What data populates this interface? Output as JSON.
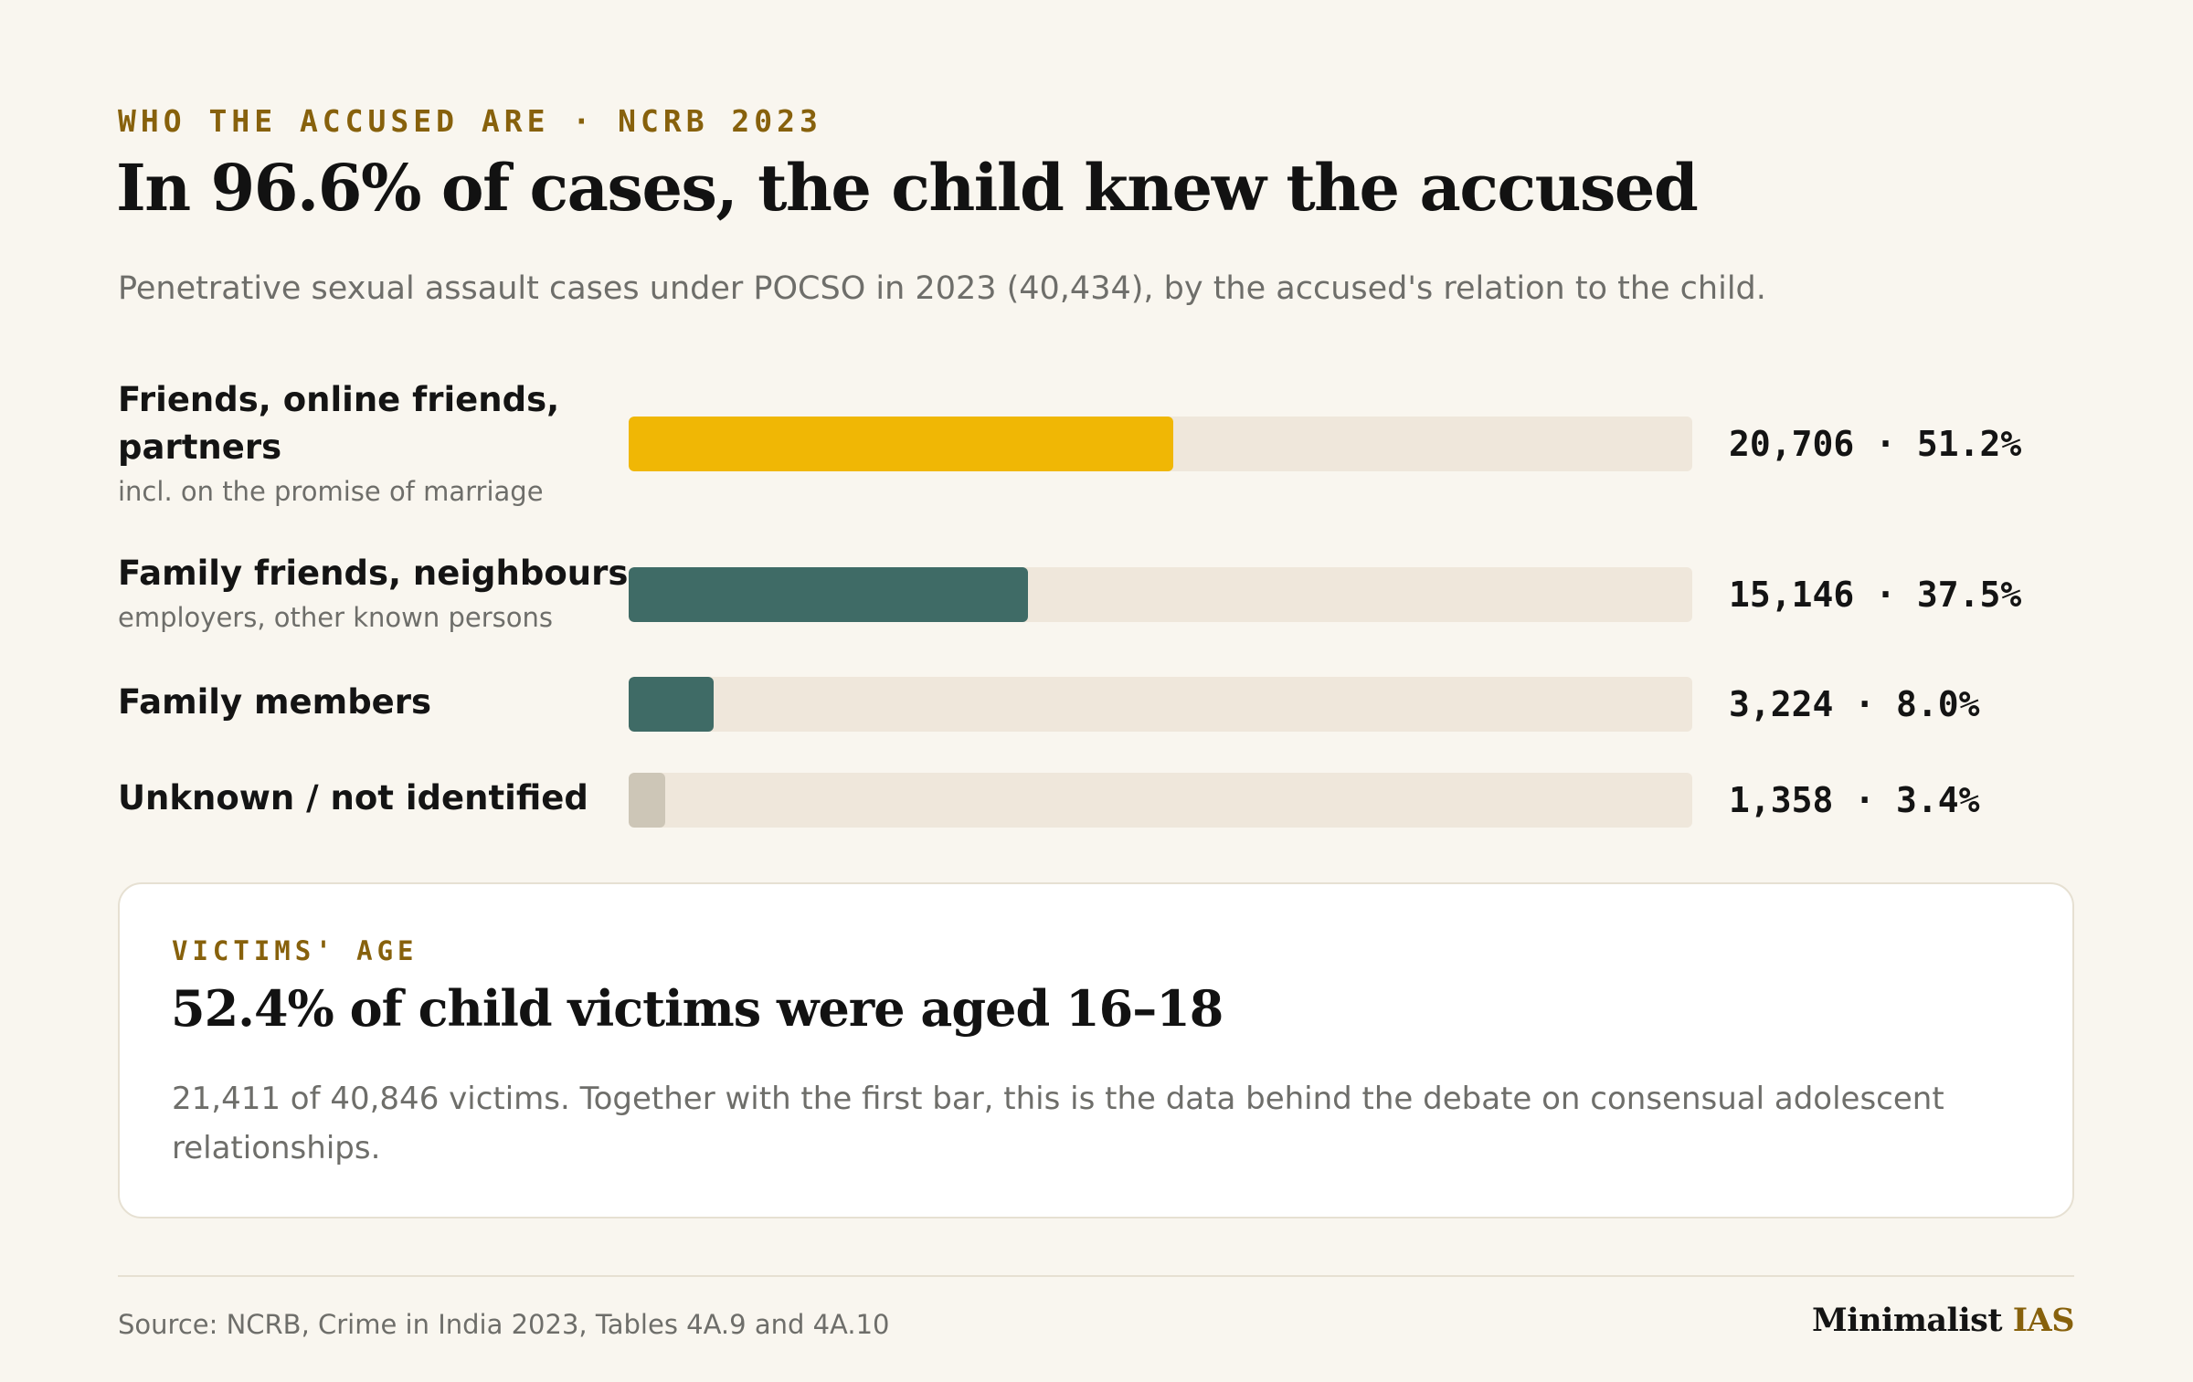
{
  "header": {
    "eyebrow": "WHO THE ACCUSED ARE · NCRB 2023",
    "title": "In 96.6% of cases, the child knew the accused",
    "subtitle": "Penetrative sexual assault cases under POCSO in 2023 (40,434), by the accused's relation to the child."
  },
  "chart_data": {
    "type": "bar",
    "orientation": "horizontal",
    "xlim": [
      0,
      100
    ],
    "categories": [
      "Friends, online friends, partners",
      "Family friends, neighbours",
      "Family members",
      "Unknown / not identified"
    ],
    "sublabels": [
      "incl. on the promise of marriage",
      "employers, other known persons",
      "",
      ""
    ],
    "values": [
      51.2,
      37.5,
      8.0,
      3.4
    ],
    "counts": [
      20706,
      15146,
      3224,
      1358
    ],
    "value_labels": [
      "20,706 · 51.2%",
      "15,146 · 37.5%",
      "3,224 · 8.0%",
      "1,358 · 3.4%"
    ],
    "colors": [
      "#f0b705",
      "#3f6b66",
      "#3f6b66",
      "#cdc6b7"
    ],
    "track_color": "#efe7db"
  },
  "callout": {
    "eyebrow": "VICTIMS' AGE",
    "title": "52.4% of child victims were aged 16–18",
    "body": "21,411 of 40,846 victims. Together with the first bar, this is the data behind the debate on consensual adolescent relationships."
  },
  "footer": {
    "source": "Source: NCRB, Crime in India 2023, Tables 4A.9 and 4A.10",
    "brand_part1": "Minimalist",
    "brand_part2": "IAS"
  }
}
